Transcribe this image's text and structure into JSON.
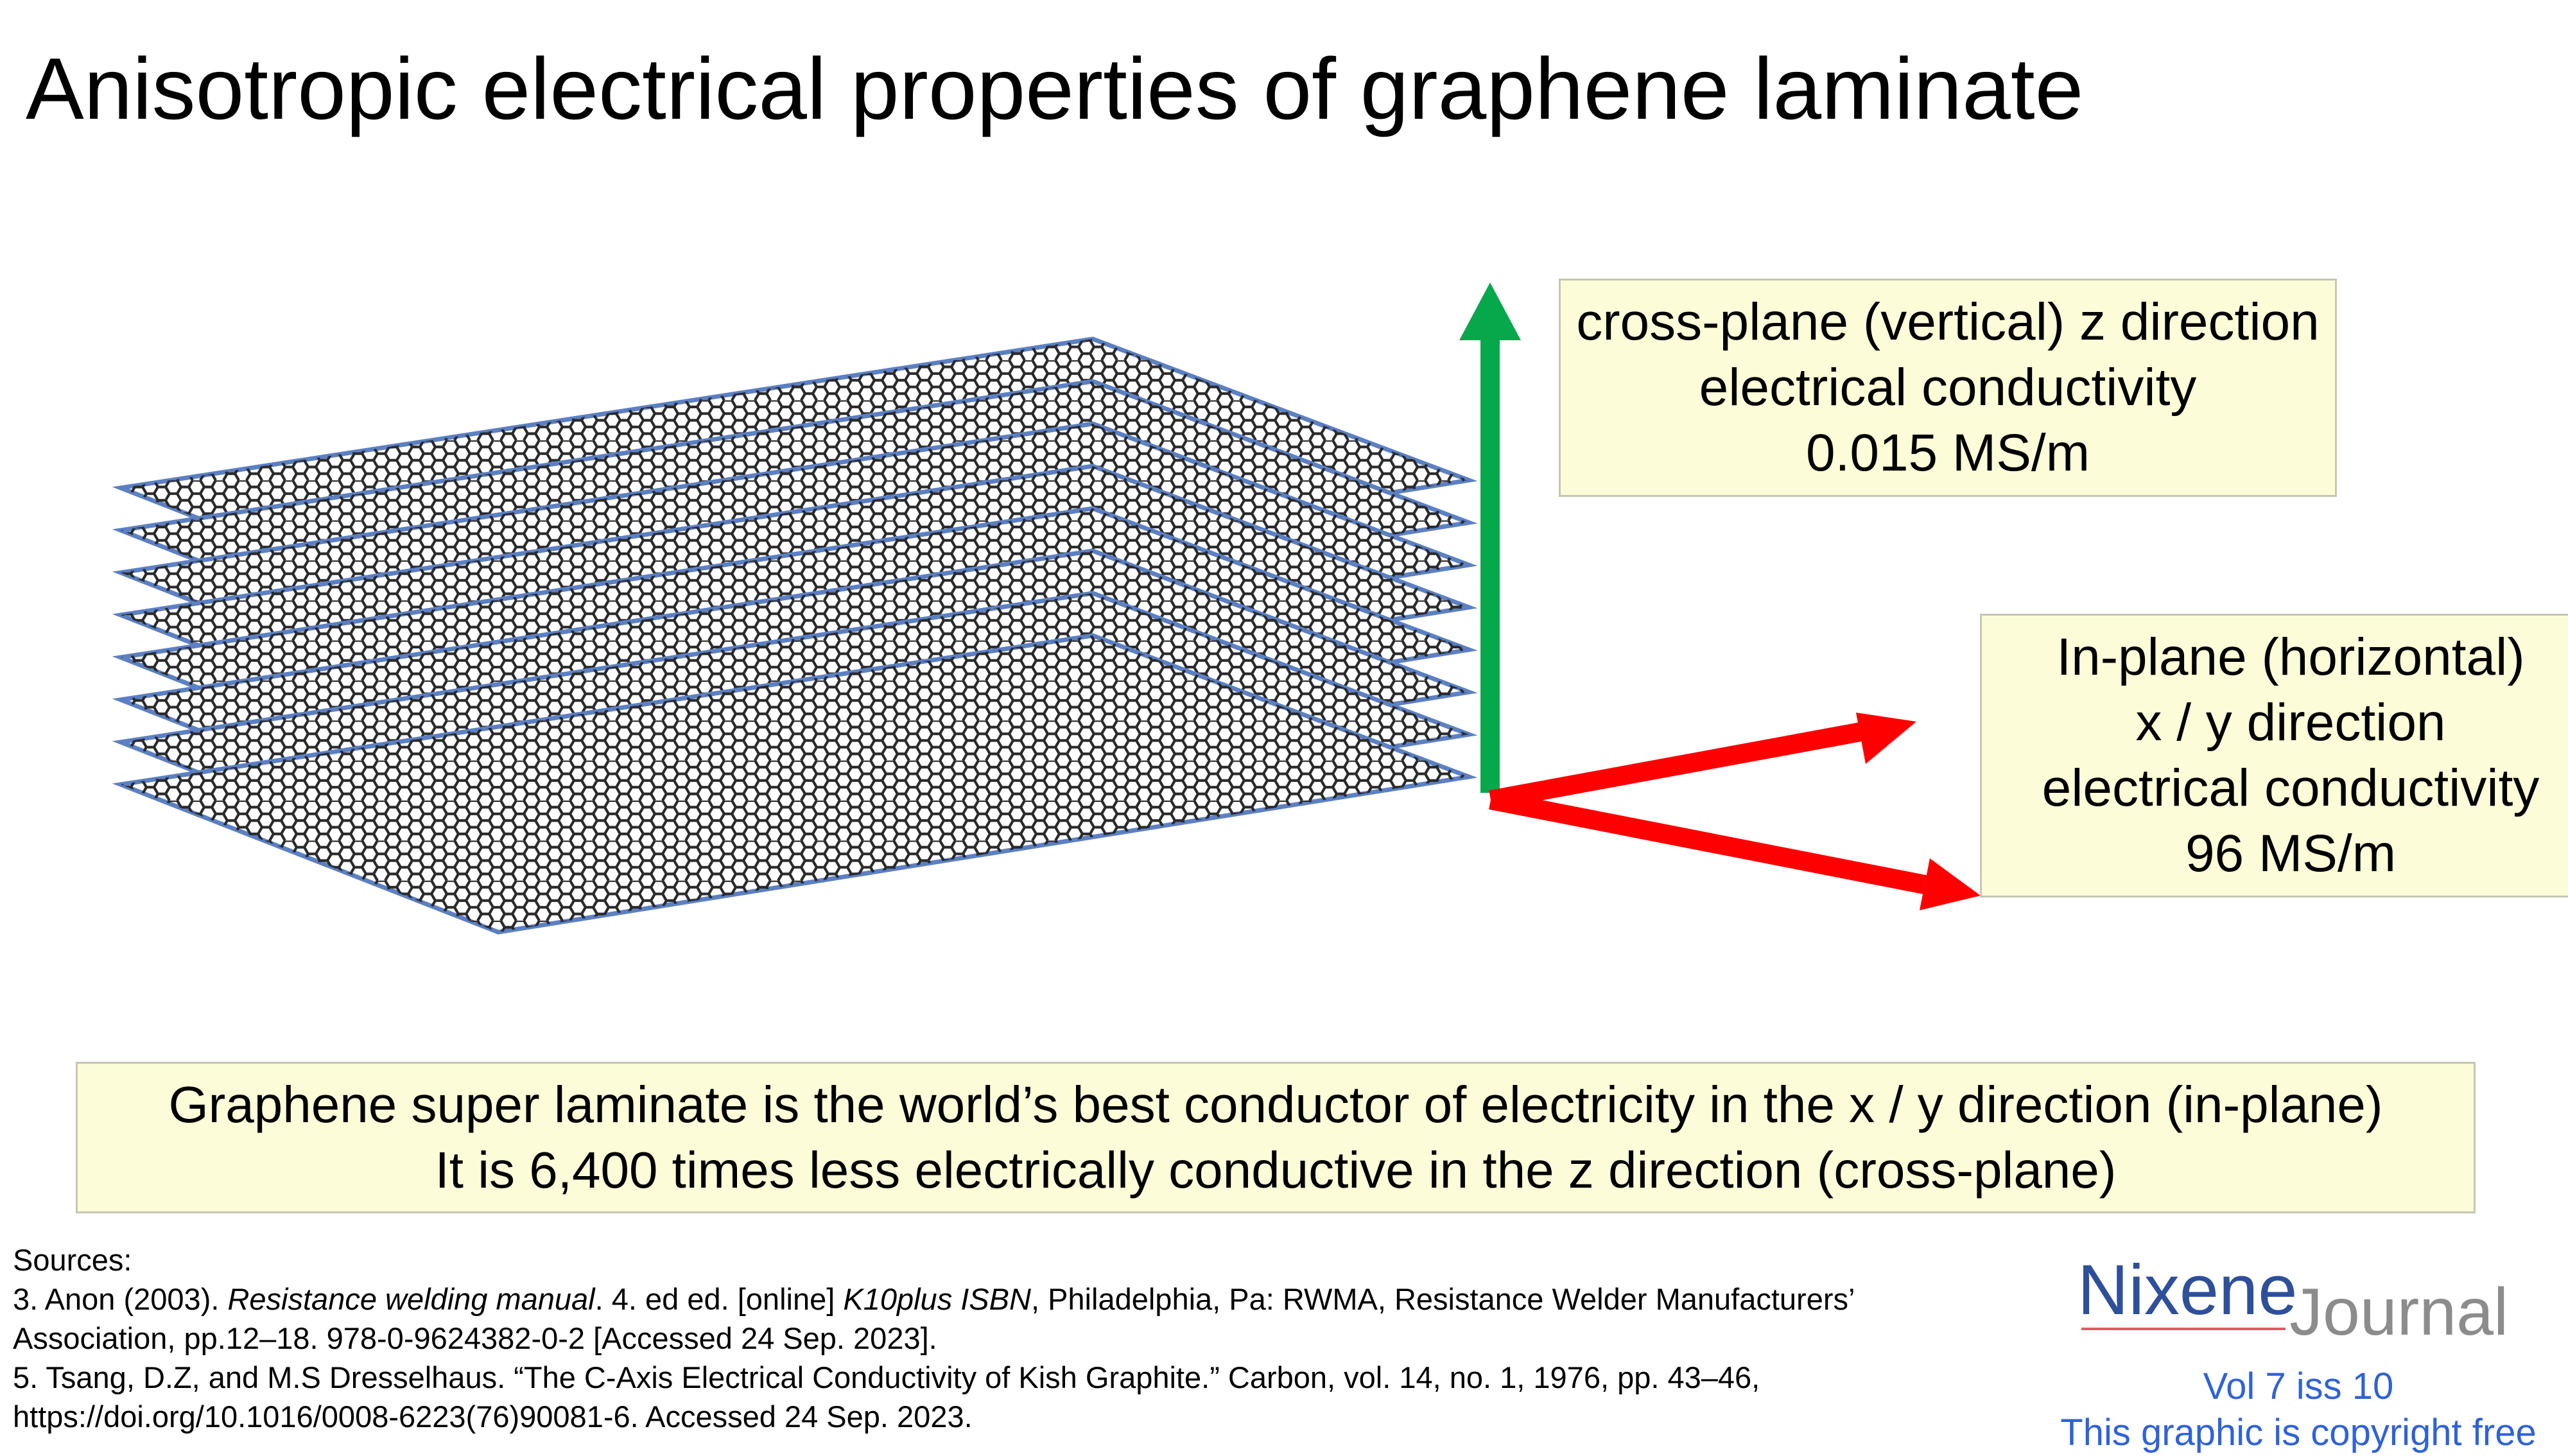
{
  "title": "Anisotropic electrical properties of graphene laminate",
  "diagram": {
    "layer_count": 8,
    "colors": {
      "lattice": "#2a2a2a",
      "sheet_edge": "#5c80c4",
      "z_arrow": "#07a84b",
      "xy_arrow": "#ff0000"
    }
  },
  "z_box": {
    "line1": "cross-plane (vertical) z direction",
    "line2": "electrical conductivity",
    "line3": "0.015 MS/m"
  },
  "xy_box": {
    "line1": "In-plane (horizontal)",
    "line2": "x / y  direction",
    "line3": "electrical conductivity",
    "line4": "96 MS/m"
  },
  "summary": {
    "line1": "Graphene super laminate is the world’s best conductor of electricity in the x / y direction (in-plane)",
    "line2": "It is 6,400 times less electrically conductive in the z direction (cross-plane)"
  },
  "sources": {
    "heading": "Sources:",
    "ref3_prefix": "3. Anon (2003). ",
    "ref3_title": "Resistance welding manual",
    "ref3_mid": ". 4. ed ed. [online] ",
    "ref3_isbn": "K10plus ISBN",
    "ref3_rest": ", Philadelphia, Pa: RWMA, Resistance Welder Manufacturers’",
    "ref3_line2": "Association, pp.12–18. 978-0-9624382-0-2 [Accessed 24 Sep. 2023].",
    "ref5_line1": "5. Tsang, D.Z, and M.S Dresselhaus. “The C-Axis Electrical Conductivity of Kish Graphite.” Carbon, vol. 14, no. 1, 1976, pp. 43–46,",
    "ref5_line2": "https://doi.org/10.1016/0008-6223(76)90081-6. Accessed 24 Sep. 2023."
  },
  "logo": {
    "nixene": "Nixene",
    "journal": "Journal",
    "volume": "Vol 7 iss 10",
    "copyright": "This graphic is copyright free",
    "colors": {
      "nixene": "#2d4f9c",
      "journal": "#8c8c8c",
      "underline": "#e05a63",
      "footer_text": "#2f62d9"
    }
  }
}
